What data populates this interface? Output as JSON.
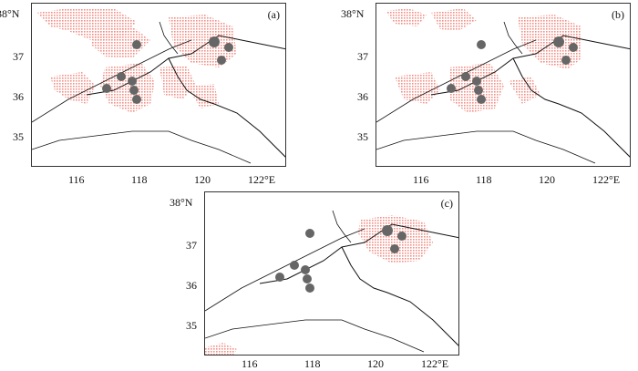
{
  "panels": [
    {
      "label": "(a)",
      "x_ticks": [
        "116",
        "118",
        "120",
        "122°E"
      ],
      "y_ticks": [
        "38°N",
        "37",
        "36",
        "35"
      ]
    },
    {
      "label": "(b)",
      "x_ticks": [
        "116",
        "118",
        "120",
        "122°E"
      ],
      "y_ticks": [
        "38°N",
        "37",
        "36",
        "35"
      ]
    },
    {
      "label": "(c)",
      "x_ticks": [
        "116",
        "118",
        "120",
        "122°E"
      ],
      "y_ticks": [
        "38°N",
        "37",
        "36",
        "35"
      ]
    }
  ],
  "colors": {
    "shading": "#f08a80",
    "marker": "#666666",
    "line": "#111111"
  }
}
